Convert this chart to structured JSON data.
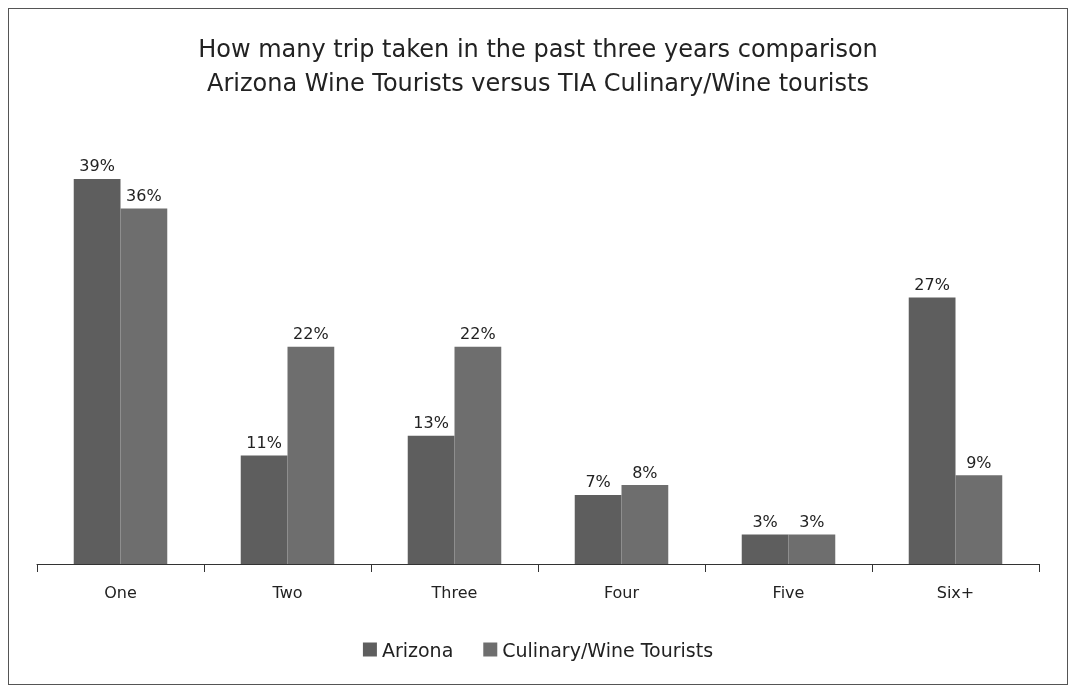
{
  "chart_data": {
    "type": "bar",
    "title": "How many trip taken in the past three years comparison\nArizona Wine Tourists versus TIA Culinary/Wine tourists",
    "categories": [
      "One",
      "Two",
      "Three",
      "Four",
      "Five",
      "Six+"
    ],
    "series": [
      {
        "name": "Arizona",
        "color": "#5e5e5e",
        "values": [
          39,
          11,
          13,
          7,
          3,
          27
        ],
        "value_labels": [
          "39%",
          "11%",
          "13%",
          "7%",
          "3%",
          "27%"
        ]
      },
      {
        "name": "Culinary/Wine Tourists",
        "color": "#6e6e6e",
        "values": [
          36,
          22,
          22,
          8,
          3,
          9
        ],
        "value_labels": [
          "36%",
          "22%",
          "22%",
          "8%",
          "3%",
          "9%"
        ]
      }
    ],
    "legend": "bottom"
  }
}
